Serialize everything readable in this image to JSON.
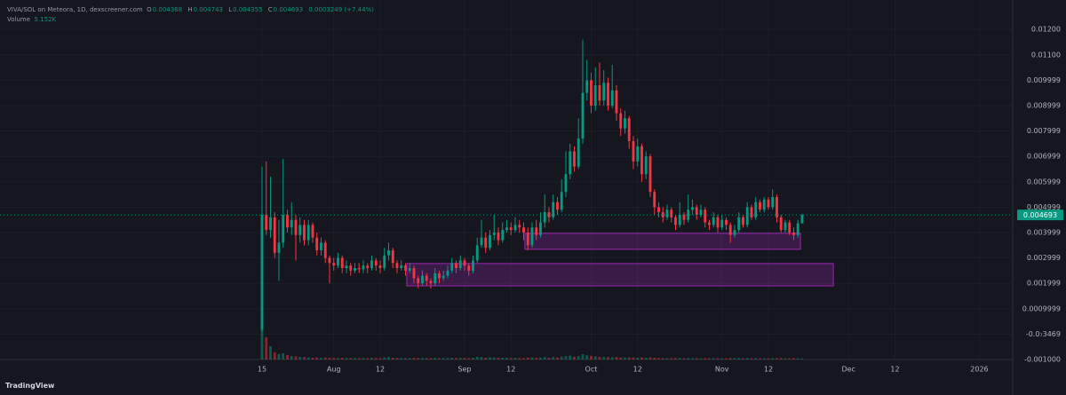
{
  "chart_data": {
    "type": "candlestick",
    "title": "VIVA/SOL on Meteora, 1D, dexscreener.com",
    "ohlc_labels": [
      "O",
      "H",
      "L",
      "C"
    ],
    "change": "0.0003249 (+7.44%)",
    "up_color": "#089981",
    "down_color": "#f23645",
    "grid": true,
    "x": [
      0,
      1,
      2,
      3,
      4,
      5,
      6,
      7,
      8,
      9,
      10,
      11,
      12,
      13,
      14,
      15,
      16,
      17,
      18,
      19,
      20,
      21,
      22,
      23,
      24,
      25,
      26,
      27,
      28,
      29,
      30,
      31,
      32,
      33,
      34,
      35,
      36,
      37,
      38,
      39,
      40,
      41,
      42,
      43,
      44,
      45,
      46,
      47,
      48,
      49,
      50,
      51,
      52,
      53,
      54,
      55,
      56,
      57,
      58,
      59,
      60,
      61,
      62,
      63,
      64,
      65,
      66,
      67,
      68,
      69,
      70,
      71,
      72,
      73,
      74,
      75,
      76,
      77,
      78,
      79,
      80,
      81,
      82,
      83,
      84,
      85,
      86,
      87,
      88,
      89,
      90,
      91,
      92,
      93,
      94,
      95,
      96,
      97,
      98,
      99,
      100,
      101,
      102,
      103,
      104,
      105,
      106,
      107,
      108,
      109,
      110,
      111,
      112,
      113,
      114,
      115,
      116,
      117,
      118,
      119,
      120,
      121,
      122,
      123,
      124,
      125,
      126,
      127,
      128
    ],
    "open": [
      0.0002,
      0.0047,
      0.0041,
      0.0046,
      0.0032,
      0.0036,
      0.0047,
      0.0042,
      0.0045,
      0.0039,
      0.0043,
      0.0037,
      0.0043,
      0.0038,
      0.0033,
      0.0036,
      0.003,
      0.0028,
      0.0027,
      0.003,
      0.0026,
      0.0027,
      0.0025,
      0.0026,
      0.00255,
      0.0027,
      0.0026,
      0.0029,
      0.0027,
      0.0026,
      0.0031,
      0.0033,
      0.0028,
      0.0026,
      0.0027,
      0.0025,
      0.0026,
      0.0022,
      0.002,
      0.0023,
      0.0021,
      0.002,
      0.0024,
      0.0022,
      0.0023,
      0.0025,
      0.0028,
      0.0026,
      0.0029,
      0.0027,
      0.0025,
      0.0029,
      0.0035,
      0.0038,
      0.0034,
      0.0039,
      0.004,
      0.0037,
      0.0041,
      0.0042,
      0.0041,
      0.0043,
      0.0042,
      0.004,
      0.0035,
      0.0042,
      0.0039,
      0.0044,
      0.0048,
      0.0046,
      0.0052,
      0.0049,
      0.0056,
      0.0063,
      0.0072,
      0.0066,
      0.0077,
      0.0095,
      0.01,
      0.009,
      0.0098,
      0.0092,
      0.0099,
      0.009,
      0.0096,
      0.0087,
      0.0081,
      0.0085,
      0.0076,
      0.0068,
      0.0074,
      0.0063,
      0.007,
      0.0056,
      0.005,
      0.0048,
      0.0046,
      0.0049,
      0.0046,
      0.0043,
      0.0047,
      0.0045,
      0.0049,
      0.005,
      0.0047,
      0.0049,
      0.0044,
      0.0043,
      0.0046,
      0.0042,
      0.0045,
      0.0043,
      0.0039,
      0.0041,
      0.0046,
      0.0043,
      0.005,
      0.0046,
      0.0052,
      0.0049,
      0.0053,
      0.005,
      0.0054,
      0.0046,
      0.0041,
      0.0044,
      0.004,
      0.0039,
      0.004368
    ],
    "high": [
      0.0066,
      0.0068,
      0.0062,
      0.0048,
      0.0045,
      0.0069,
      0.0049,
      0.0052,
      0.0047,
      0.0046,
      0.0045,
      0.0045,
      0.0044,
      0.004,
      0.0038,
      0.0037,
      0.0031,
      0.003,
      0.0032,
      0.0031,
      0.0029,
      0.0028,
      0.0028,
      0.0028,
      0.0029,
      0.0028,
      0.0031,
      0.003,
      0.0029,
      0.0034,
      0.0036,
      0.0034,
      0.0029,
      0.0029,
      0.0028,
      0.0028,
      0.0027,
      0.0023,
      0.0025,
      0.0024,
      0.0022,
      0.0026,
      0.0025,
      0.0025,
      0.0027,
      0.003,
      0.0029,
      0.0031,
      0.003,
      0.0028,
      0.0031,
      0.0038,
      0.0045,
      0.004,
      0.0041,
      0.0047,
      0.0042,
      0.0044,
      0.0045,
      0.0044,
      0.0046,
      0.0045,
      0.0044,
      0.0042,
      0.0044,
      0.0045,
      0.0048,
      0.0055,
      0.005,
      0.0055,
      0.0054,
      0.0061,
      0.0072,
      0.0075,
      0.0074,
      0.0085,
      0.0116,
      0.0108,
      0.0103,
      0.0105,
      0.0107,
      0.0104,
      0.0101,
      0.0106,
      0.0098,
      0.0089,
      0.0088,
      0.0086,
      0.0078,
      0.0077,
      0.0075,
      0.0072,
      0.0071,
      0.0057,
      0.0052,
      0.005,
      0.0051,
      0.005,
      0.0047,
      0.0052,
      0.0048,
      0.0055,
      0.0053,
      0.0051,
      0.0051,
      0.005,
      0.0045,
      0.0048,
      0.0047,
      0.0047,
      0.0046,
      0.0044,
      0.0043,
      0.0048,
      0.0047,
      0.0052,
      0.0051,
      0.0054,
      0.0053,
      0.0054,
      0.0054,
      0.0057,
      0.0055,
      0.0047,
      0.0045,
      0.0045,
      0.0042,
      0.0045,
      0.004743
    ],
    "low": [
      0.0001,
      0.0039,
      0.0038,
      0.003,
      0.0021,
      0.0034,
      0.004,
      0.0039,
      0.0029,
      0.0036,
      0.0035,
      0.0035,
      0.0036,
      0.0031,
      0.0031,
      0.0028,
      0.002,
      0.0025,
      0.0026,
      0.0024,
      0.0024,
      0.0023,
      0.0024,
      0.0024,
      0.0024,
      0.0024,
      0.0025,
      0.0025,
      0.0024,
      0.0025,
      0.0029,
      0.0026,
      0.0024,
      0.0025,
      0.0023,
      0.0024,
      0.002,
      0.0018,
      0.0019,
      0.0019,
      0.0018,
      0.0019,
      0.002,
      0.0021,
      0.0022,
      0.0024,
      0.0024,
      0.0025,
      0.0025,
      0.0023,
      0.0024,
      0.0028,
      0.0034,
      0.0032,
      0.0033,
      0.0037,
      0.0035,
      0.0036,
      0.004,
      0.0039,
      0.004,
      0.004,
      0.0037,
      0.0033,
      0.0034,
      0.0037,
      0.0038,
      0.0042,
      0.0044,
      0.0045,
      0.0047,
      0.0048,
      0.0054,
      0.0061,
      0.0064,
      0.0065,
      0.0075,
      0.0092,
      0.0087,
      0.0088,
      0.009,
      0.009,
      0.0088,
      0.0089,
      0.0084,
      0.0078,
      0.0079,
      0.0073,
      0.0065,
      0.0066,
      0.006,
      0.0061,
      0.0054,
      0.0047,
      0.0046,
      0.0044,
      0.0045,
      0.0044,
      0.0041,
      0.0042,
      0.0043,
      0.0044,
      0.0047,
      0.0045,
      0.0046,
      0.0042,
      0.0041,
      0.0042,
      0.004,
      0.0041,
      0.0041,
      0.0036,
      0.0038,
      0.004,
      0.0042,
      0.0042,
      0.0045,
      0.0045,
      0.0048,
      0.0048,
      0.0049,
      0.0049,
      0.0044,
      0.004,
      0.004,
      0.0039,
      0.0037,
      0.0038,
      0.004355
    ],
    "close": [
      0.0047,
      0.0041,
      0.0046,
      0.0032,
      0.0036,
      0.0047,
      0.0042,
      0.0045,
      0.0039,
      0.0043,
      0.0037,
      0.0043,
      0.0038,
      0.0033,
      0.0036,
      0.003,
      0.0028,
      0.0027,
      0.003,
      0.0026,
      0.0027,
      0.0025,
      0.0026,
      0.00255,
      0.0027,
      0.0026,
      0.0029,
      0.0027,
      0.0026,
      0.0031,
      0.0033,
      0.0028,
      0.0026,
      0.0027,
      0.0025,
      0.0026,
      0.0022,
      0.002,
      0.0023,
      0.0021,
      0.002,
      0.0024,
      0.0022,
      0.0023,
      0.0025,
      0.0028,
      0.0026,
      0.0029,
      0.0027,
      0.0025,
      0.0029,
      0.0035,
      0.0038,
      0.0034,
      0.0039,
      0.004,
      0.0037,
      0.0041,
      0.0042,
      0.0041,
      0.0043,
      0.0042,
      0.004,
      0.0035,
      0.0042,
      0.0039,
      0.0044,
      0.0048,
      0.0046,
      0.0052,
      0.0049,
      0.0056,
      0.0063,
      0.0072,
      0.0066,
      0.0077,
      0.0095,
      0.01,
      0.009,
      0.0098,
      0.0092,
      0.0099,
      0.009,
      0.0096,
      0.0087,
      0.0081,
      0.0085,
      0.0076,
      0.0068,
      0.0074,
      0.0063,
      0.007,
      0.0056,
      0.005,
      0.0048,
      0.0046,
      0.0049,
      0.0046,
      0.0043,
      0.0047,
      0.0045,
      0.0049,
      0.005,
      0.0047,
      0.0049,
      0.0044,
      0.0043,
      0.0046,
      0.0042,
      0.0045,
      0.0043,
      0.0039,
      0.0041,
      0.0046,
      0.0043,
      0.005,
      0.0046,
      0.0052,
      0.0049,
      0.0053,
      0.005,
      0.0054,
      0.0046,
      0.0041,
      0.0044,
      0.004,
      0.0039,
      0.004368,
      0.004693
    ],
    "volume": {
      "name": "Volume",
      "last_label": "5.152K",
      "vlim": [
        0,
        700000
      ],
      "values": [
        175000,
        125000,
        75000,
        40000,
        30000,
        35000,
        25000,
        20000,
        18000,
        15000,
        14000,
        12000,
        10000,
        12000,
        9000,
        11000,
        9000,
        8000,
        8000,
        9000,
        8000,
        7000,
        8000,
        7000,
        8000,
        7000,
        9000,
        8000,
        7000,
        12000,
        14000,
        10000,
        8000,
        8000,
        7000,
        7000,
        9000,
        8000,
        8000,
        7000,
        7000,
        9000,
        7000,
        7000,
        8000,
        10000,
        8000,
        9000,
        8000,
        7000,
        10000,
        15000,
        14000,
        10000,
        12000,
        12000,
        9000,
        10000,
        9000,
        8000,
        9000,
        8000,
        8000,
        11000,
        12000,
        9000,
        11000,
        14000,
        10000,
        14000,
        11000,
        16000,
        20000,
        22000,
        16000,
        20000,
        30000,
        24000,
        20000,
        18000,
        16000,
        15000,
        14000,
        13000,
        14000,
        12000,
        11000,
        12000,
        12000,
        10000,
        12000,
        10000,
        12000,
        10000,
        8000,
        7000,
        7000,
        7000,
        8000,
        8000,
        7000,
        8000,
        7000,
        7000,
        6000,
        7000,
        6000,
        7000,
        7000,
        6000,
        6000,
        8000,
        7000,
        8000,
        6000,
        8000,
        6000,
        7000,
        6000,
        6000,
        6000,
        7000,
        7000,
        8000,
        6000,
        6000,
        7000,
        6000,
        5152
      ]
    },
    "zones": [
      {
        "x": [
          62.3,
          127.6
        ],
        "y": [
          0.00334,
          0.00397
        ],
        "color": "#9c27b0"
      },
      {
        "x": [
          34.3,
          135.4
        ],
        "y": [
          0.0019,
          0.00278
        ],
        "color": "#9c27b0"
      }
    ],
    "xlim": [
      -62.1,
      177.9
    ],
    "xticks": [
      {
        "value": 0,
        "label": "15"
      },
      {
        "value": 17,
        "label": "Aug"
      },
      {
        "value": 28,
        "label": "12"
      },
      {
        "value": 48,
        "label": "Sep"
      },
      {
        "value": 59,
        "label": "12"
      },
      {
        "value": 78,
        "label": "Oct"
      },
      {
        "value": 89,
        "label": "12"
      },
      {
        "value": 109,
        "label": "Nov"
      },
      {
        "value": 120,
        "label": "12"
      },
      {
        "value": 139,
        "label": "Dec"
      },
      {
        "value": 150,
        "label": "12"
      },
      {
        "value": 170,
        "label": "2026"
      }
    ],
    "ylim": [
      -0.001,
      0.01316
    ],
    "yticks": [
      {
        "value": 0.012,
        "label": "0.01200"
      },
      {
        "value": 0.011,
        "label": "0.01100"
      },
      {
        "value": 0.009999,
        "label": "0.009999"
      },
      {
        "value": 0.008999,
        "label": "0.008999"
      },
      {
        "value": 0.007999,
        "label": "0.007999"
      },
      {
        "value": 0.006999,
        "label": "0.006999"
      },
      {
        "value": 0.005999,
        "label": "0.005999"
      },
      {
        "value": 0.004999,
        "label": "0.004999"
      },
      {
        "value": 0.003999,
        "label": "0.003999"
      },
      {
        "value": 0.002999,
        "label": "0.002999"
      },
      {
        "value": 0.001999,
        "label": "0.001999"
      },
      {
        "value": 0.0009999,
        "label": "0.0009999"
      },
      {
        "value": -3.469e-08,
        "label": "-0.0₇3469"
      },
      {
        "value": -0.001,
        "label": "-0.001000"
      }
    ],
    "brand": "TradingView"
  }
}
